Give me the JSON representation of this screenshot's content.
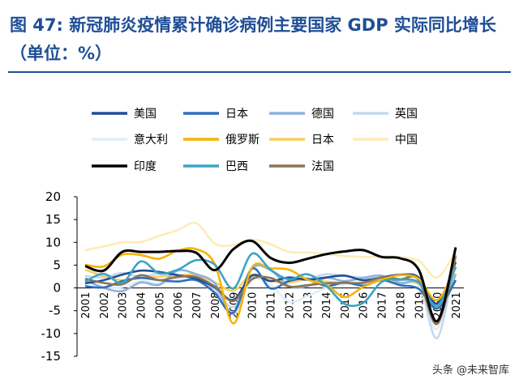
{
  "title": "图 47: 新冠肺炎疫情累计确诊病例主要国家 GDP 实际同比增长（单位：%）",
  "watermark": "头条 @未来智库",
  "chart_data": {
    "type": "line",
    "x": [
      "2001",
      "2002",
      "2003",
      "2004",
      "2005",
      "2006",
      "2007",
      "2008",
      "2009",
      "2010",
      "2011",
      "2012",
      "2013",
      "2014",
      "2015",
      "2016",
      "2017",
      "2018",
      "2019",
      "2020",
      "2021"
    ],
    "ylim": [
      -15,
      20
    ],
    "yticks": [
      20,
      15,
      10,
      5,
      0,
      -5,
      -10,
      -15
    ],
    "legend_position": "top",
    "series": [
      {
        "name": "美国",
        "color": "#1f4e96",
        "values": [
          1.0,
          1.7,
          2.9,
          3.8,
          3.5,
          2.8,
          2.0,
          0.1,
          -2.6,
          2.7,
          1.5,
          2.3,
          1.8,
          2.3,
          2.7,
          1.7,
          2.3,
          2.9,
          2.3,
          -3.4,
          5.7
        ]
      },
      {
        "name": "日本",
        "color": "#2e6fc0",
        "values": [
          0.4,
          0.1,
          1.5,
          2.2,
          1.7,
          1.4,
          1.7,
          -1.1,
          -5.4,
          4.2,
          -0.1,
          1.5,
          2.0,
          0.4,
          1.2,
          0.5,
          1.7,
          0.6,
          -0.2,
          -4.5,
          1.7
        ]
      },
      {
        "name": "德国",
        "color": "#8db2de",
        "values": [
          1.7,
          0.0,
          -0.7,
          1.2,
          0.7,
          3.8,
          3.0,
          1.0,
          -5.7,
          4.2,
          3.9,
          0.4,
          0.4,
          2.2,
          1.5,
          2.2,
          2.7,
          1.1,
          1.1,
          -4.6,
          2.9
        ]
      },
      {
        "name": "英国",
        "color": "#c5d9f0",
        "values": [
          2.6,
          2.3,
          3.3,
          2.4,
          3.2,
          2.7,
          2.4,
          -0.3,
          -4.2,
          2.1,
          1.5,
          1.5,
          1.9,
          3.0,
          2.6,
          2.3,
          2.1,
          1.7,
          1.6,
          -11.0,
          7.5
        ]
      },
      {
        "name": "意大利",
        "color": "#e3edf7",
        "values": [
          1.8,
          0.3,
          0.2,
          1.6,
          0.9,
          1.8,
          1.5,
          -1.0,
          -5.3,
          1.7,
          0.7,
          -3.0,
          -1.8,
          0.0,
          0.8,
          1.3,
          1.7,
          0.9,
          0.5,
          -9.0,
          6.6
        ]
      },
      {
        "name": "俄罗斯",
        "color": "#f5b400",
        "values": [
          5.1,
          4.7,
          7.3,
          7.2,
          6.4,
          8.2,
          8.5,
          5.2,
          -7.8,
          4.5,
          4.3,
          4.0,
          1.8,
          0.7,
          -2.0,
          0.2,
          1.8,
          2.8,
          2.0,
          -2.7,
          4.7
        ]
      },
      {
        "name": "日本",
        "color": "#f8cf5a",
        "values": [
          4.0,
          2.6,
          1.7,
          2.2,
          2.5,
          2.7,
          2.9,
          1.2,
          -0.6,
          2.9,
          1.6,
          1.2,
          1.9,
          1.4,
          1.1,
          1.2,
          1.7,
          1.1,
          0.9,
          -4.3,
          3.2
        ]
      },
      {
        "name": "中国",
        "color": "#fdecb6",
        "values": [
          8.3,
          9.1,
          10.0,
          10.1,
          11.4,
          12.7,
          14.2,
          9.7,
          9.4,
          10.6,
          9.6,
          7.9,
          7.8,
          7.4,
          7.0,
          6.8,
          6.9,
          6.7,
          6.0,
          2.3,
          8.1
        ]
      },
      {
        "name": "印度",
        "color": "#000000",
        "values": [
          4.8,
          3.8,
          7.9,
          7.9,
          7.9,
          8.1,
          7.7,
          3.9,
          8.5,
          10.3,
          6.6,
          5.5,
          6.4,
          7.4,
          8.0,
          8.3,
          6.8,
          6.5,
          4.0,
          -7.3,
          8.9
        ]
      },
      {
        "name": "巴西",
        "color": "#3ba3c6",
        "values": [
          1.4,
          3.1,
          1.1,
          5.8,
          3.2,
          4.0,
          6.1,
          5.1,
          -0.1,
          7.5,
          4.0,
          1.9,
          3.0,
          0.5,
          -3.5,
          -3.3,
          1.3,
          1.8,
          1.2,
          -3.9,
          4.6
        ]
      },
      {
        "name": "法国",
        "color": "#8b7355",
        "values": [
          2.0,
          1.1,
          0.8,
          2.8,
          1.7,
          2.4,
          2.4,
          0.3,
          -2.9,
          1.9,
          2.2,
          0.3,
          0.6,
          1.0,
          1.1,
          1.1,
          2.3,
          1.9,
          1.8,
          -7.9,
          7.0
        ]
      }
    ]
  }
}
